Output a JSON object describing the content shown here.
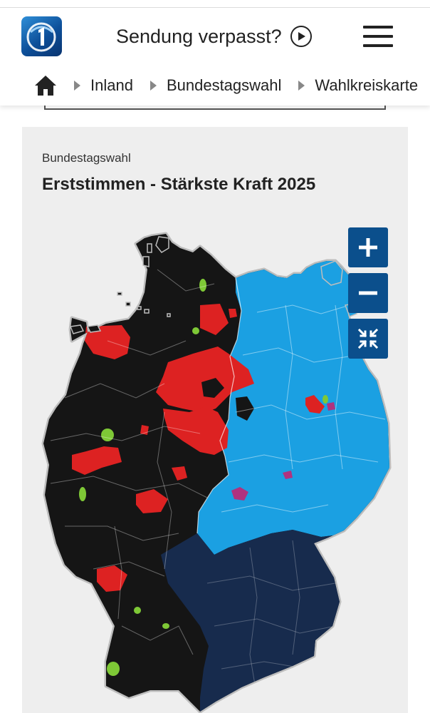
{
  "header": {
    "logo_icon": "tagesschau-logo-icon",
    "broadcast_link": "Sendung verpasst?",
    "play_icon": "play-circle-icon",
    "menu_icon": "hamburger-menu-icon"
  },
  "breadcrumb": {
    "home_icon": "home-icon",
    "items": [
      "Inland",
      "Bundestagswahl",
      "Wahlkreiskarte"
    ]
  },
  "map_module": {
    "overline": "Bundestagswahl",
    "title": "Erststimmen - Stärkste Kraft 2025",
    "controls": {
      "zoom_in_icon": "plus-icon",
      "zoom_out_icon": "minus-icon",
      "reset_icon": "collapse-arrows-icon"
    },
    "legend_colors": {
      "west_black": "#151515",
      "red": "#dd2222",
      "east_lightblue": "#1ba0e2",
      "bavaria_navy": "#172b4d",
      "green": "#7ec836",
      "purple": "#b0327f"
    }
  }
}
